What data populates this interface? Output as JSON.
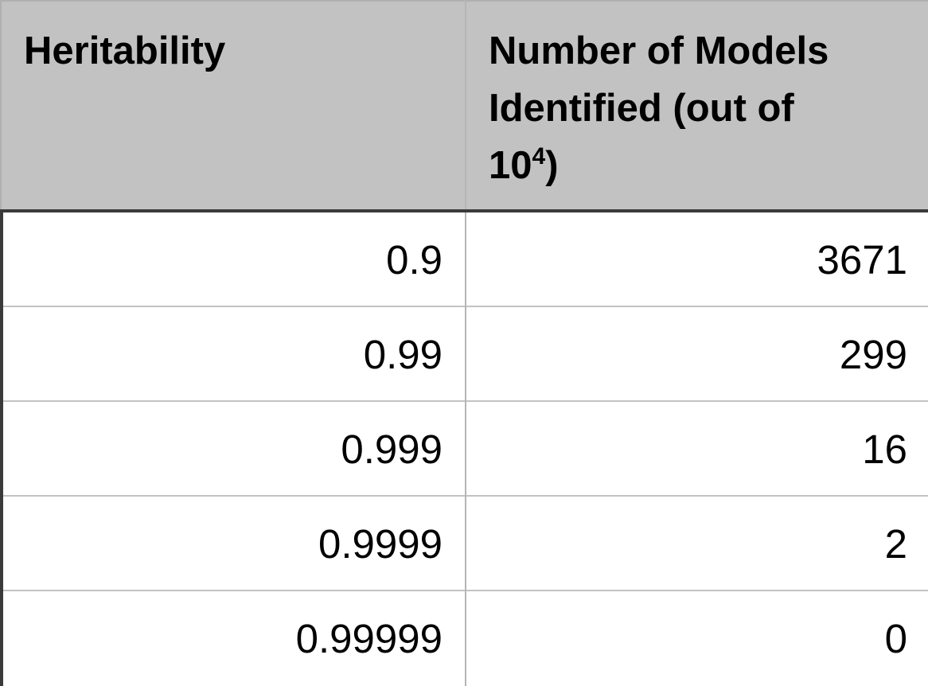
{
  "table": {
    "headers": {
      "col1": "Heritability",
      "col2_line1": "Number of Models",
      "col2_line2": "Identified (out of",
      "col2_line3_base": "10",
      "col2_line3_exp": "4",
      "col2_line3_tail": ")"
    },
    "rows": [
      {
        "heritability": "0.9",
        "models": "3671"
      },
      {
        "heritability": "0.99",
        "models": "299"
      },
      {
        "heritability": "0.999",
        "models": "16"
      },
      {
        "heritability": "0.9999",
        "models": "2"
      },
      {
        "heritability": "0.99999",
        "models": "0"
      }
    ]
  },
  "colors": {
    "header_background": "#c1c2c1",
    "header_rule": "#3a3a3a",
    "grid_line": "#c3c3c3"
  }
}
